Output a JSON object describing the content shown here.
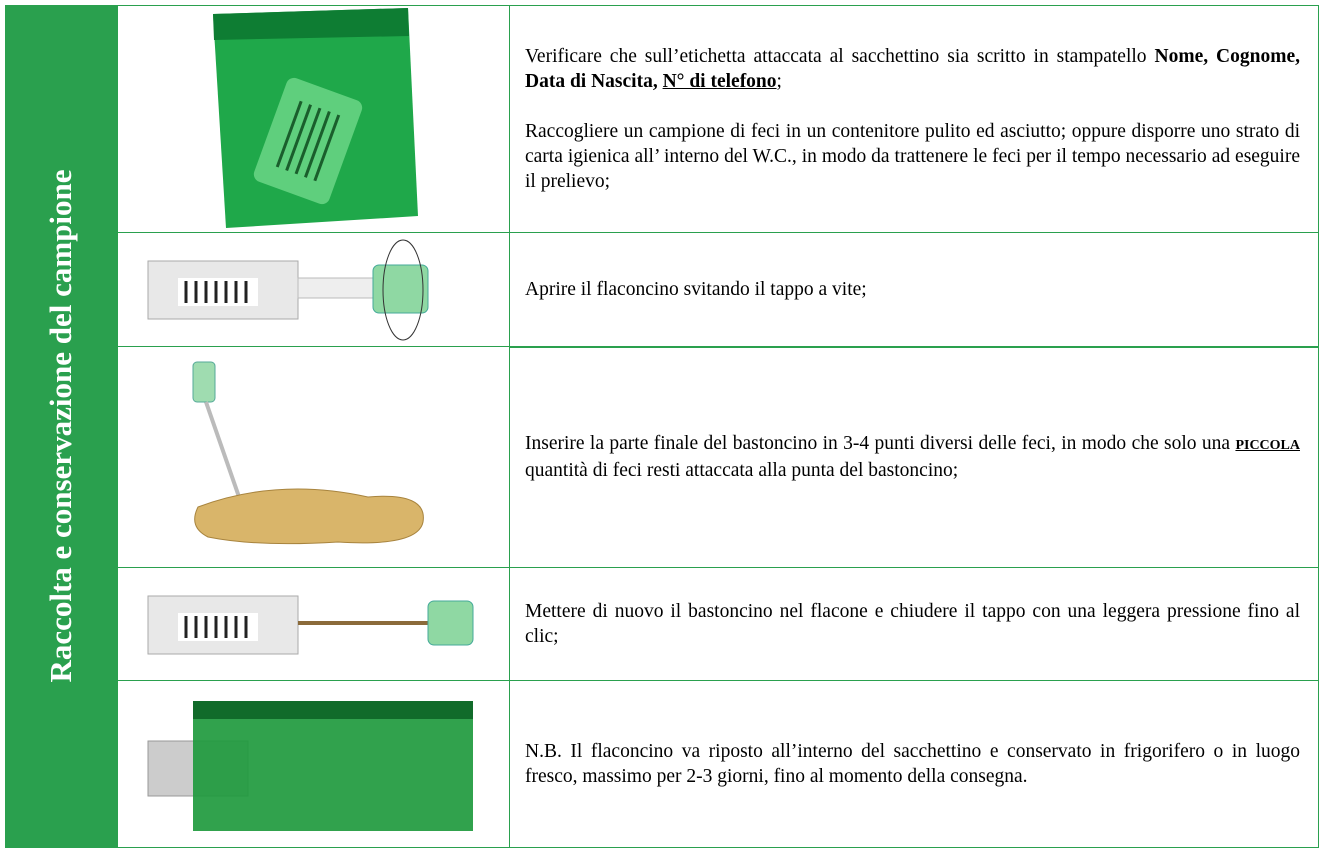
{
  "header": {
    "title": "Raccolta e conservazione del campione"
  },
  "rows": [
    {
      "paragraphs": [
        [
          "Verificare che sull’etichetta attaccata al sacchettino sia scritto in stampatello ",
          "Nome, Cognome, Data di Nascita, ",
          "N° di telefono",
          ";"
        ],
        [
          "Raccogliere un campione di feci in un contenitore pulito ed asciutto; oppure disporre uno strato di carta igienica all’ interno del W.C., in modo da trattenere le feci per il tempo necessario ad eseguire il prelievo;"
        ]
      ]
    },
    {
      "paragraphs": [
        [
          "Aprire il flaconcino svitando il tappo a vite;"
        ]
      ]
    },
    {
      "paragraphs": [
        [
          "Inserire la parte finale del bastoncino in 3-4 punti diversi delle feci, in modo che solo una ",
          "PICCOLA ",
          "quantità di feci resti attaccata alla punta del bastoncino;"
        ]
      ]
    },
    {
      "paragraphs": [
        [
          "Mettere di nuovo il bastoncino nel flacone e chiudere il tappo con una leggera pressione fino al clic;"
        ]
      ]
    },
    {
      "paragraphs": [
        [
          "N.B. Il flaconcino va riposto all’interno del sacchettino e conservato in frigorifero o in luogo fresco, massimo per 2-3 giorni, fino al momento della consegna."
        ]
      ]
    }
  ]
}
